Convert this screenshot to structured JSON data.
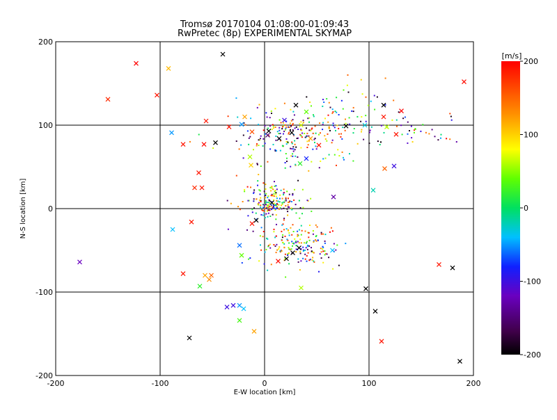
{
  "chart_data": {
    "type": "scatter",
    "title": "Tromsø 20170104 01:08:00-01:09:43",
    "subtitle": "RwPretec (8p) EXPERIMENTAL SKYMAP",
    "xlabel": "E-W location [km]",
    "ylabel": "N-S location [km]",
    "xlim": [
      -200,
      200
    ],
    "ylim": [
      -200,
      200
    ],
    "xticks": [
      "-200",
      "-100",
      "0",
      "100",
      "200"
    ],
    "yticks": [
      "-200",
      "-100",
      "0",
      "100",
      "200"
    ],
    "grid": true,
    "colorbar": {
      "label": "[m/s]",
      "range": [
        -200,
        200
      ],
      "ticks": [
        "200",
        "100",
        "0",
        "-100",
        "-200"
      ],
      "colormap": "rainbow (black-purple-blue-cyan-green-yellow-orange-red)"
    },
    "crosses": [
      {
        "x": -123,
        "y": 174,
        "v": 200
      },
      {
        "x": -92,
        "y": 168,
        "v": 110
      },
      {
        "x": -103,
        "y": 136,
        "v": 190
      },
      {
        "x": -150,
        "y": 131,
        "v": 180
      },
      {
        "x": -40,
        "y": 185,
        "v": -200
      },
      {
        "x": 191,
        "y": 152,
        "v": 195
      },
      {
        "x": -56,
        "y": 105,
        "v": 190
      },
      {
        "x": -19,
        "y": 110,
        "v": 120
      },
      {
        "x": -22,
        "y": 101,
        "v": -50
      },
      {
        "x": -89,
        "y": 91,
        "v": -50
      },
      {
        "x": -78,
        "y": 77,
        "v": 190
      },
      {
        "x": -58,
        "y": 77,
        "v": 195
      },
      {
        "x": -47,
        "y": 79,
        "v": -200
      },
      {
        "x": -34,
        "y": 98,
        "v": 190
      },
      {
        "x": -12,
        "y": 92,
        "v": 160
      },
      {
        "x": -13,
        "y": 52,
        "v": 100
      },
      {
        "x": -14,
        "y": 62,
        "v": 60
      },
      {
        "x": 4,
        "y": 93,
        "v": -200
      },
      {
        "x": 3,
        "y": 88,
        "v": -150
      },
      {
        "x": 14,
        "y": 84,
        "v": -200
      },
      {
        "x": 19,
        "y": 106,
        "v": -100
      },
      {
        "x": 26,
        "y": 91,
        "v": -200
      },
      {
        "x": 30,
        "y": 124,
        "v": -200
      },
      {
        "x": 35,
        "y": 100,
        "v": 70
      },
      {
        "x": 40,
        "y": 116,
        "v": 40
      },
      {
        "x": 44,
        "y": 84,
        "v": 120
      },
      {
        "x": 52,
        "y": 76,
        "v": 190
      },
      {
        "x": 40,
        "y": 60,
        "v": -80
      },
      {
        "x": 34,
        "y": 54,
        "v": 20
      },
      {
        "x": 78,
        "y": 99,
        "v": -200
      },
      {
        "x": 96,
        "y": 100,
        "v": -30
      },
      {
        "x": 114,
        "y": 124,
        "v": -200
      },
      {
        "x": 131,
        "y": 117,
        "v": 200
      },
      {
        "x": 117,
        "y": 98,
        "v": 60
      },
      {
        "x": 126,
        "y": 89,
        "v": 190
      },
      {
        "x": 114,
        "y": 110,
        "v": 190
      },
      {
        "x": 115,
        "y": 48,
        "v": 150
      },
      {
        "x": 124,
        "y": 51,
        "v": -100
      },
      {
        "x": 104,
        "y": 22,
        "v": -20
      },
      {
        "x": -63,
        "y": 43,
        "v": 190
      },
      {
        "x": -60,
        "y": 25,
        "v": 190
      },
      {
        "x": -67,
        "y": 25,
        "v": 180
      },
      {
        "x": -70,
        "y": -16,
        "v": 190
      },
      {
        "x": -88,
        "y": -25,
        "v": -40
      },
      {
        "x": -24,
        "y": -44,
        "v": -60
      },
      {
        "x": -22,
        "y": -56,
        "v": 40
      },
      {
        "x": -177,
        "y": -64,
        "v": -120
      },
      {
        "x": -78,
        "y": -78,
        "v": 190
      },
      {
        "x": -57,
        "y": -80,
        "v": 120
      },
      {
        "x": -53,
        "y": -85,
        "v": 130
      },
      {
        "x": -51,
        "y": -80,
        "v": 150
      },
      {
        "x": -62,
        "y": -93,
        "v": 20
      },
      {
        "x": -36,
        "y": -118,
        "v": -100
      },
      {
        "x": -30,
        "y": -116,
        "v": -100
      },
      {
        "x": -24,
        "y": -116,
        "v": -50
      },
      {
        "x": -20,
        "y": -120,
        "v": -40
      },
      {
        "x": -24,
        "y": -134,
        "v": 30
      },
      {
        "x": -10,
        "y": -147,
        "v": 120
      },
      {
        "x": -72,
        "y": -155,
        "v": -200
      },
      {
        "x": 35,
        "y": -95,
        "v": 60
      },
      {
        "x": 66,
        "y": 14,
        "v": -130
      },
      {
        "x": 65,
        "y": -50,
        "v": -40
      },
      {
        "x": 97,
        "y": -96,
        "v": -200
      },
      {
        "x": 106,
        "y": -123,
        "v": -200
      },
      {
        "x": 112,
        "y": -159,
        "v": 190
      },
      {
        "x": 167,
        "y": -67,
        "v": 190
      },
      {
        "x": 180,
        "y": -71,
        "v": -200
      },
      {
        "x": 187,
        "y": -183,
        "v": -200
      },
      {
        "x": -12,
        "y": -18,
        "v": 190
      },
      {
        "x": 13,
        "y": -63,
        "v": 195
      },
      {
        "x": 21,
        "y": -60,
        "v": -200
      },
      {
        "x": 27,
        "y": -53,
        "v": -200
      },
      {
        "x": 33,
        "y": -47,
        "v": -200
      },
      {
        "x": 7,
        "y": 7,
        "v": -200
      },
      {
        "x": -8,
        "y": -14,
        "v": -200
      }
    ],
    "clusters": [
      {
        "cx": 30,
        "cy": 88,
        "sx": 30,
        "sy": 17,
        "n": 230
      },
      {
        "cx": 8,
        "cy": 8,
        "sx": 13,
        "sy": 10,
        "n": 190
      },
      {
        "cx": 28,
        "cy": -42,
        "sx": 20,
        "sy": 15,
        "n": 200
      },
      {
        "cx": 145,
        "cy": 95,
        "sx": 30,
        "sy": 12,
        "n": 45
      },
      {
        "cx": 75,
        "cy": 118,
        "sx": 22,
        "sy": 16,
        "n": 50
      }
    ]
  }
}
